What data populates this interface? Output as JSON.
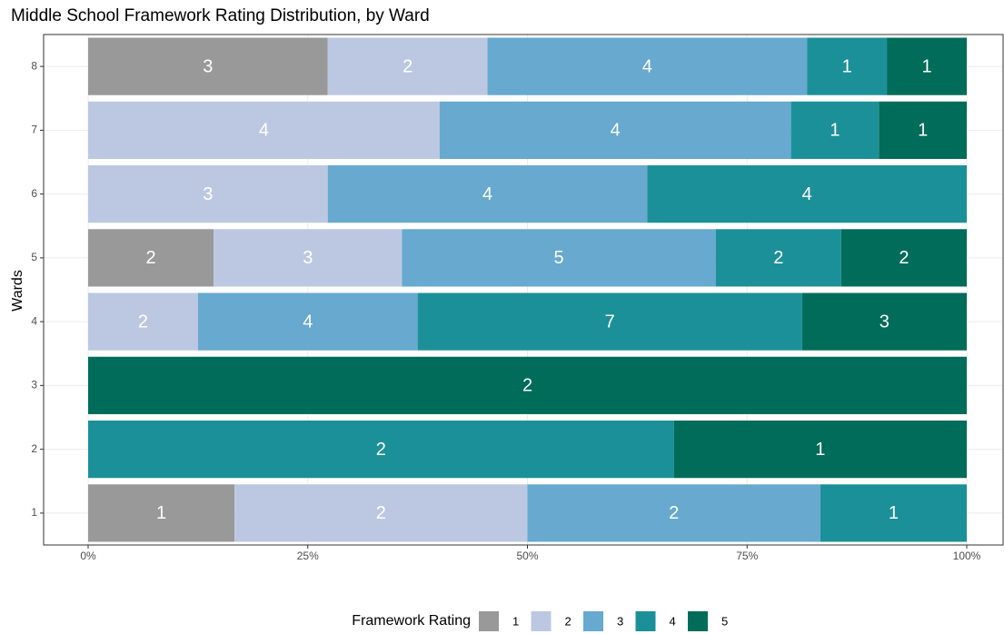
{
  "chart_data": {
    "type": "bar",
    "orientation": "horizontal",
    "stacking": "percent",
    "title": "Middle School Framework Rating Distribution, by Ward",
    "y_label": "Wards",
    "legend_title": "Framework Rating",
    "legend_position": "bottom",
    "grid": true,
    "categories": [
      "1",
      "2",
      "3",
      "4",
      "5",
      "6",
      "7",
      "8"
    ],
    "series": [
      {
        "name": "1",
        "color": "#999999",
        "values": [
          1,
          null,
          null,
          null,
          2,
          null,
          null,
          3
        ]
      },
      {
        "name": "2",
        "color": "#bcc8e2",
        "values": [
          2,
          null,
          null,
          2,
          3,
          3,
          4,
          2
        ]
      },
      {
        "name": "3",
        "color": "#67a9cf",
        "values": [
          2,
          null,
          null,
          4,
          5,
          4,
          4,
          4
        ]
      },
      {
        "name": "4",
        "color": "#1c9099",
        "values": [
          1,
          2,
          null,
          7,
          2,
          4,
          1,
          1
        ]
      },
      {
        "name": "5",
        "color": "#016c59",
        "values": [
          null,
          1,
          2,
          3,
          2,
          null,
          1,
          1
        ]
      }
    ],
    "xlim": [
      0,
      100
    ],
    "xticks": [
      {
        "value": 0,
        "label": "0%"
      },
      {
        "value": 25,
        "label": "25%"
      },
      {
        "value": 50,
        "label": "50%"
      },
      {
        "value": 75,
        "label": "75%"
      },
      {
        "value": 100,
        "label": "100%"
      }
    ]
  }
}
